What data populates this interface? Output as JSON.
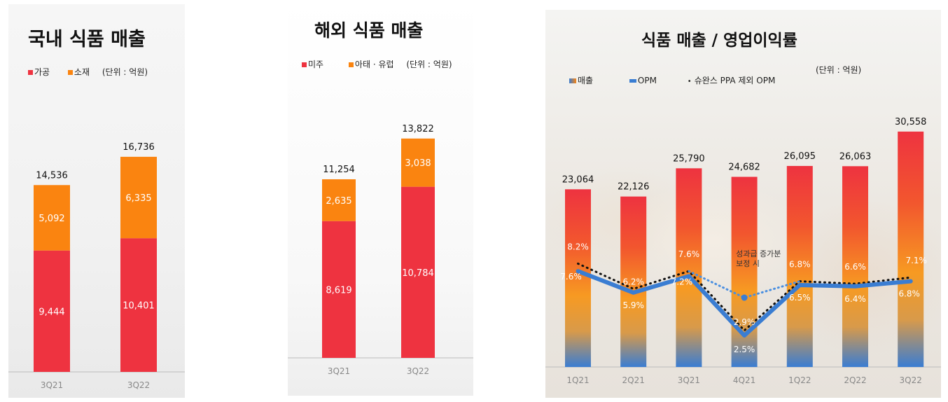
{
  "colors": {
    "red": "#EE3340",
    "orange": "#FA8410",
    "blue": "#3A7DD2",
    "axis": "#bbbbbb",
    "tick": "#888888",
    "dark": "#111111"
  },
  "chart_data": [
    {
      "type": "bar",
      "title": "국내 식품 매출",
      "legend": [
        "가공",
        "소재"
      ],
      "unit": "(단위 : 억원)",
      "categories": [
        "3Q21",
        "3Q22"
      ],
      "series": [
        {
          "name": "가공",
          "values": [
            9444,
            10401
          ],
          "labels": [
            "9,444",
            "10,401"
          ]
        },
        {
          "name": "소재",
          "values": [
            5092,
            6335
          ],
          "labels": [
            "5,092",
            "6,335"
          ]
        }
      ],
      "totals": [
        14536,
        16736
      ],
      "total_labels": [
        "14,536",
        "16,736"
      ]
    },
    {
      "type": "bar",
      "title": "해외 식품 매출",
      "legend": [
        "미주",
        "아태 · 유럽"
      ],
      "unit": "(단위 : 억원)",
      "categories": [
        "3Q21",
        "3Q22"
      ],
      "series": [
        {
          "name": "미주",
          "values": [
            8619,
            10784
          ],
          "labels": [
            "8,619",
            "10,784"
          ]
        },
        {
          "name": "아태 · 유럽",
          "values": [
            2635,
            3038
          ],
          "labels": [
            "2,635",
            "3,038"
          ]
        }
      ],
      "totals": [
        11254,
        13822
      ],
      "total_labels": [
        "11,254",
        "13,822"
      ]
    },
    {
      "type": "bar+line",
      "title": "식품 매출 / 영업이익률",
      "legend": [
        "매출",
        "OPM",
        "슈완스 PPA 제외 OPM"
      ],
      "unit": "(단위 : 억원)",
      "categories": [
        "1Q21",
        "2Q21",
        "3Q21",
        "4Q21",
        "1Q22",
        "2Q22",
        "3Q22"
      ],
      "sales": [
        23064,
        22126,
        25790,
        24682,
        26095,
        26063,
        30558
      ],
      "sales_labels": [
        "23,064",
        "22,126",
        "25,790",
        "24,682",
        "26,095",
        "26,063",
        "30,558"
      ],
      "opm": [
        7.6,
        5.9,
        7.2,
        2.5,
        6.5,
        6.4,
        6.8
      ],
      "opm_labels": [
        "7.6%",
        "5.9%",
        "7.2%",
        "2.5%",
        "6.5%",
        "6.4%",
        "6.8%"
      ],
      "opm_ex_ppa": [
        8.2,
        6.2,
        7.6,
        2.9,
        6.8,
        6.6,
        7.1
      ],
      "opm_ex_ppa_labels": [
        "8.2%",
        "6.2%",
        "7.6%",
        "2.9%",
        "6.8%",
        "6.6%",
        "7.1%"
      ],
      "opm_adjusted_4q21": 5.5,
      "annotation": [
        "성과급 증가분",
        "보정 시"
      ]
    }
  ]
}
